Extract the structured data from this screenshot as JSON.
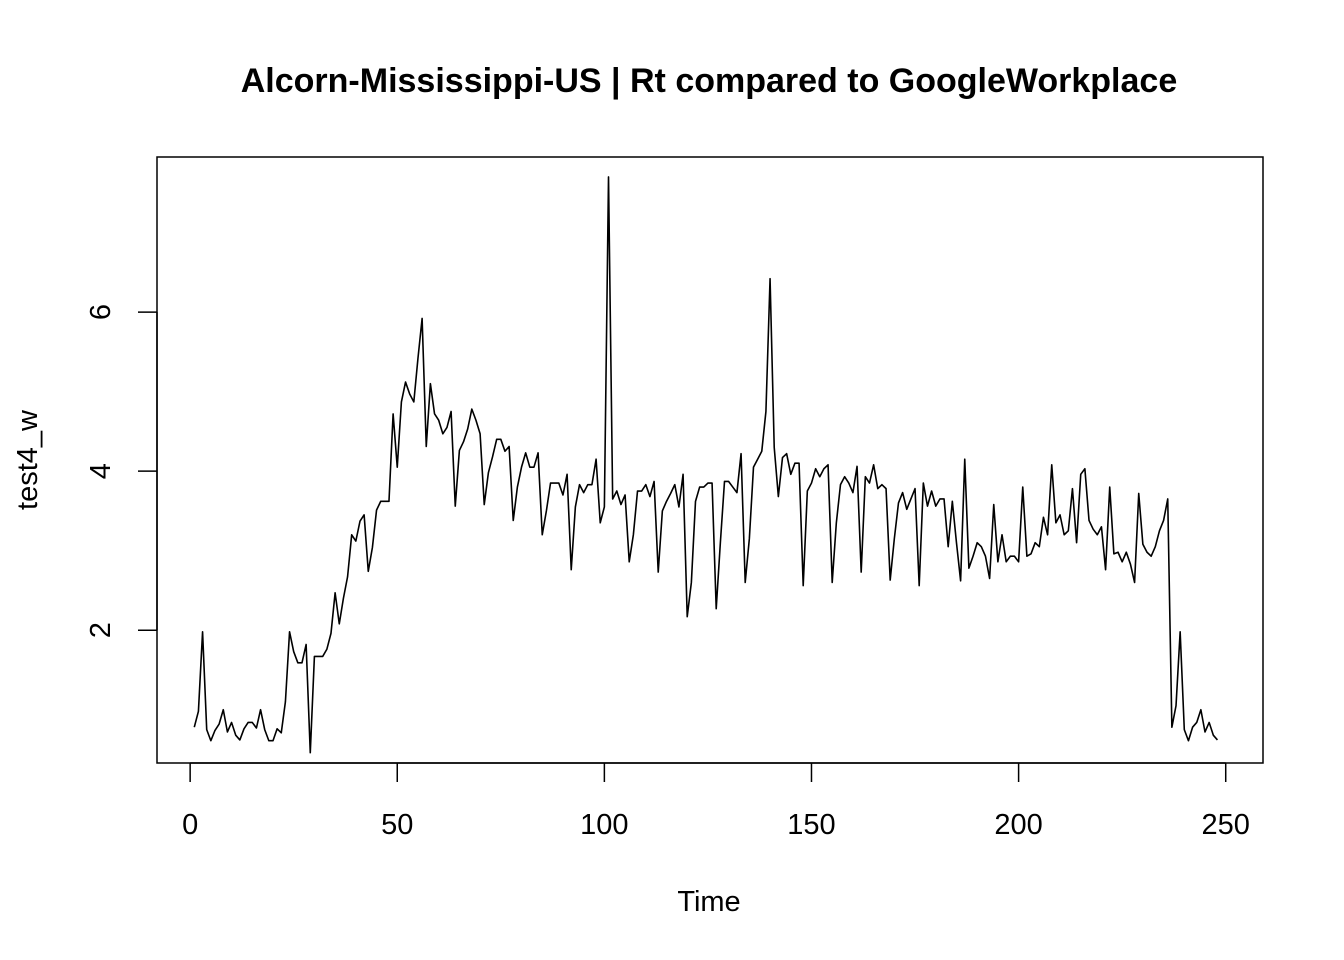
{
  "chart_data": {
    "type": "line",
    "title": "Alcorn-Mississippi-US | Rt compared to GoogleWorkplace",
    "xlabel": "Time",
    "ylabel": "test4_w",
    "xlim": [
      -8,
      259
    ],
    "ylim": [
      0.33,
      7.95
    ],
    "x_ticks": [
      0,
      50,
      100,
      150,
      200,
      250
    ],
    "y_ticks": [
      2,
      4,
      6
    ],
    "grid": false,
    "legend": "none",
    "line_color": "#000000",
    "series": [
      {
        "x_start": 1,
        "values": [
          0.78,
          0.98,
          1.98,
          0.75,
          0.61,
          0.74,
          0.82,
          1.0,
          0.72,
          0.84,
          0.68,
          0.62,
          0.76,
          0.84,
          0.84,
          0.77,
          1.0,
          0.75,
          0.61,
          0.61,
          0.76,
          0.71,
          1.1,
          1.98,
          1.73,
          1.59,
          1.59,
          1.82,
          0.46,
          1.67,
          1.67,
          1.67,
          1.76,
          1.96,
          2.47,
          2.08,
          2.4,
          2.67,
          3.2,
          3.12,
          3.37,
          3.45,
          2.74,
          3.04,
          3.51,
          3.62,
          3.62,
          3.62,
          4.72,
          4.05,
          4.87,
          5.12,
          4.97,
          4.87,
          5.42,
          5.92,
          4.31,
          5.1,
          4.72,
          4.64,
          4.47,
          4.55,
          4.75,
          3.56,
          4.26,
          4.37,
          4.53,
          4.78,
          4.64,
          4.47,
          3.58,
          3.98,
          4.18,
          4.4,
          4.4,
          4.25,
          4.31,
          3.38,
          3.8,
          4.05,
          4.23,
          4.05,
          4.05,
          4.23,
          3.2,
          3.5,
          3.85,
          3.85,
          3.85,
          3.7,
          3.96,
          2.76,
          3.55,
          3.83,
          3.73,
          3.83,
          3.83,
          4.15,
          3.35,
          3.55,
          7.7,
          3.65,
          3.75,
          3.58,
          3.7,
          2.86,
          3.2,
          3.75,
          3.75,
          3.83,
          3.68,
          3.87,
          2.73,
          3.5,
          3.62,
          3.72,
          3.83,
          3.55,
          3.96,
          2.17,
          2.6,
          3.62,
          3.8,
          3.8,
          3.85,
          3.85,
          2.27,
          3.1,
          3.87,
          3.87,
          3.8,
          3.73,
          4.22,
          2.6,
          3.15,
          4.05,
          4.15,
          4.25,
          4.75,
          6.42,
          4.3,
          3.68,
          4.17,
          4.22,
          3.96,
          4.1,
          4.1,
          2.56,
          3.75,
          3.85,
          4.03,
          3.93,
          4.03,
          4.08,
          2.6,
          3.35,
          3.83,
          3.93,
          3.85,
          3.73,
          4.06,
          2.73,
          3.93,
          3.85,
          4.08,
          3.78,
          3.83,
          3.78,
          2.63,
          3.15,
          3.6,
          3.73,
          3.52,
          3.65,
          3.78,
          2.56,
          3.85,
          3.56,
          3.75,
          3.56,
          3.65,
          3.65,
          3.05,
          3.62,
          3.1,
          2.62,
          4.15,
          2.78,
          2.93,
          3.1,
          3.05,
          2.93,
          2.65,
          3.58,
          2.86,
          3.2,
          2.86,
          2.93,
          2.93,
          2.86,
          3.8,
          2.93,
          2.96,
          3.1,
          3.05,
          3.42,
          3.2,
          4.08,
          3.35,
          3.45,
          3.2,
          3.25,
          3.78,
          3.1,
          3.96,
          4.03,
          3.38,
          3.27,
          3.2,
          3.3,
          2.76,
          3.8,
          2.96,
          2.98,
          2.86,
          2.98,
          2.83,
          2.6,
          3.72,
          3.08,
          2.98,
          2.93,
          3.05,
          3.25,
          3.38,
          3.65,
          0.78,
          1.05,
          1.98,
          0.75,
          0.61,
          0.78,
          0.84,
          1.0,
          0.72,
          0.84,
          0.68,
          0.62
        ]
      }
    ]
  }
}
